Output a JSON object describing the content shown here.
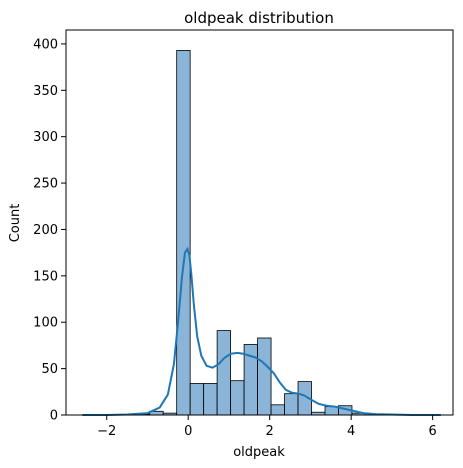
{
  "chart_data": {
    "type": "bar",
    "title": "oldpeak distribution",
    "xlabel": "oldpeak",
    "ylabel": "Count",
    "xlim": [
      -3.0,
      6.5
    ],
    "ylim": [
      0,
      415
    ],
    "xticks": [
      -2,
      0,
      2,
      4,
      6
    ],
    "yticks": [
      0,
      50,
      100,
      150,
      200,
      250,
      300,
      350,
      400
    ],
    "bin_width": 0.331,
    "bins": [
      {
        "x0": -2.6,
        "x1": -2.269,
        "count": 0
      },
      {
        "x0": -2.269,
        "x1": -1.938,
        "count": 0
      },
      {
        "x0": -1.938,
        "x1": -1.607,
        "count": 0
      },
      {
        "x0": -1.607,
        "x1": -1.276,
        "count": 0
      },
      {
        "x0": -1.276,
        "x1": -0.945,
        "count": 1
      },
      {
        "x0": -0.945,
        "x1": -0.614,
        "count": 4
      },
      {
        "x0": -0.614,
        "x1": -0.283,
        "count": 2
      },
      {
        "x0": -0.283,
        "x1": 0.048,
        "count": 393
      },
      {
        "x0": 0.048,
        "x1": 0.379,
        "count": 34
      },
      {
        "x0": 0.379,
        "x1": 0.71,
        "count": 34
      },
      {
        "x0": 0.71,
        "x1": 1.041,
        "count": 91
      },
      {
        "x0": 1.041,
        "x1": 1.372,
        "count": 37
      },
      {
        "x0": 1.372,
        "x1": 1.703,
        "count": 76
      },
      {
        "x0": 1.703,
        "x1": 2.034,
        "count": 83
      },
      {
        "x0": 2.034,
        "x1": 2.365,
        "count": 11
      },
      {
        "x0": 2.365,
        "x1": 2.696,
        "count": 23
      },
      {
        "x0": 2.696,
        "x1": 3.027,
        "count": 36
      },
      {
        "x0": 3.027,
        "x1": 3.358,
        "count": 3
      },
      {
        "x0": 3.358,
        "x1": 3.689,
        "count": 9
      },
      {
        "x0": 3.689,
        "x1": 4.02,
        "count": 10
      },
      {
        "x0": 4.02,
        "x1": 4.351,
        "count": 2
      },
      {
        "x0": 4.351,
        "x1": 4.682,
        "count": 0
      },
      {
        "x0": 4.682,
        "x1": 5.013,
        "count": 0
      },
      {
        "x0": 5.013,
        "x1": 5.344,
        "count": 0
      },
      {
        "x0": 5.344,
        "x1": 5.675,
        "count": 0
      },
      {
        "x0": 5.675,
        "x1": 6.006,
        "count": 0
      },
      {
        "x0": 6.006,
        "x1": 6.2,
        "count": 0
      }
    ],
    "kde": {
      "x": [
        -2.6,
        -2.0,
        -1.5,
        -1.0,
        -0.7,
        -0.5,
        -0.35,
        -0.25,
        -0.15,
        -0.08,
        -0.02,
        0.03,
        0.08,
        0.14,
        0.22,
        0.32,
        0.45,
        0.6,
        0.75,
        0.9,
        1.05,
        1.2,
        1.35,
        1.5,
        1.65,
        1.8,
        1.95,
        2.1,
        2.25,
        2.4,
        2.55,
        2.7,
        2.85,
        3.0,
        3.2,
        3.4,
        3.6,
        3.8,
        4.0,
        4.3,
        4.6,
        5.0,
        5.5,
        6.2
      ],
      "y": [
        0,
        0,
        0.5,
        2,
        8,
        22,
        55,
        100,
        150,
        175,
        179,
        172,
        150,
        118,
        85,
        64,
        53,
        51,
        55,
        62,
        66,
        67,
        66,
        64,
        62,
        58,
        52,
        45,
        35,
        27,
        24,
        23,
        21,
        17,
        12,
        10,
        9,
        7,
        5,
        2,
        1,
        0.5,
        0,
        0
      ]
    },
    "colors": {
      "bar_fill": "#8bb4d9",
      "bar_edge": "#000000",
      "kde_line": "#1f77b4"
    },
    "grid": false,
    "legend": "none"
  }
}
